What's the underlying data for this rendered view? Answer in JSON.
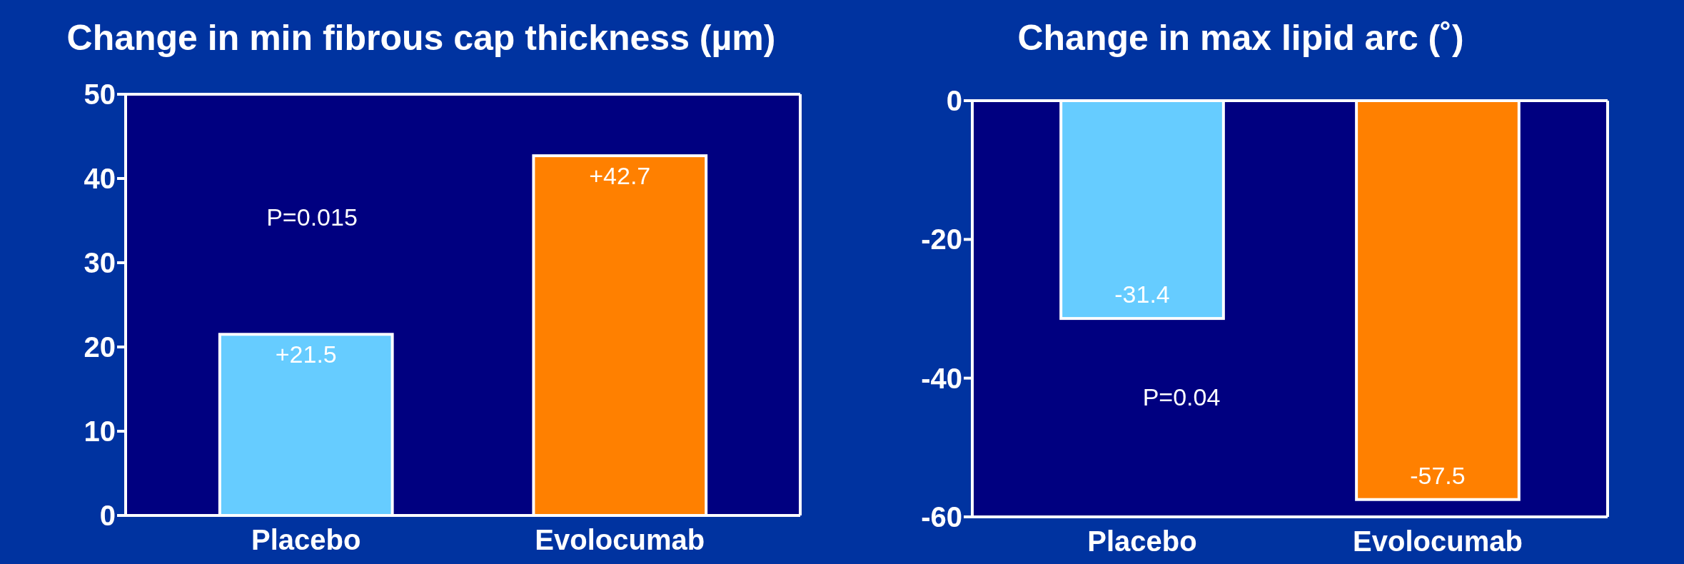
{
  "chart_data": [
    {
      "type": "bar",
      "title": "Change in min fibrous cap thickness (µm)",
      "categories": [
        "Placebo",
        "Evolocumab"
      ],
      "values": [
        21.5,
        42.7
      ],
      "colors": [
        "#66ccff",
        "#ff8000"
      ],
      "value_labels": [
        "+21.5",
        "+42.7"
      ],
      "ylim": [
        0,
        50
      ],
      "yticks": [
        0,
        10,
        20,
        30,
        40,
        50
      ],
      "annotations": [
        "P=0.015"
      ]
    },
    {
      "type": "bar",
      "title": "Change in max lipid arc (˚)",
      "categories": [
        "Placebo",
        "Evolocumab"
      ],
      "values": [
        -31.4,
        -57.5
      ],
      "colors": [
        "#66ccff",
        "#ff8000"
      ],
      "value_labels": [
        "-31.4",
        "-57.5"
      ],
      "ylim": [
        -60,
        0
      ],
      "yticks": [
        -60,
        -40,
        -20,
        0
      ],
      "annotations": [
        "P=0.04"
      ]
    }
  ]
}
